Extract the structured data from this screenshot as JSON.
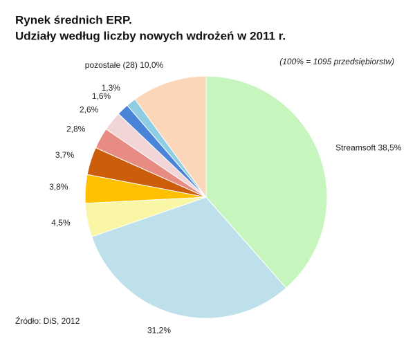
{
  "chart_data": {
    "type": "pie",
    "title": "Rynek średnich ERP.",
    "subtitle": "Udziały według liczby nowych wdrożeń w 2011 r.",
    "note": "(100% = 1095 przedsiębiorstw)",
    "source": "Źródło: DiS, 2012",
    "categories": [
      "Streamsoft",
      null,
      null,
      null,
      null,
      null,
      null,
      null,
      null,
      "pozostałe (28)"
    ],
    "values": [
      38.5,
      31.2,
      4.5,
      3.8,
      3.7,
      2.8,
      2.6,
      1.6,
      1.3,
      10.0
    ],
    "value_labels": [
      "38,5%",
      "31,2%",
      "4,5%",
      "3,8%",
      "3,7%",
      "2,8%",
      "2,6%",
      "1,6%",
      "1,3%",
      "10,0%"
    ],
    "colors": [
      "#c6f6bd",
      "#bde0ea",
      "#f9f6a6",
      "#ffc000",
      "#cc5d0b",
      "#e88b82",
      "#f2d5d7",
      "#4a84d8",
      "#8ecde2",
      "#fbd6b9"
    ]
  }
}
